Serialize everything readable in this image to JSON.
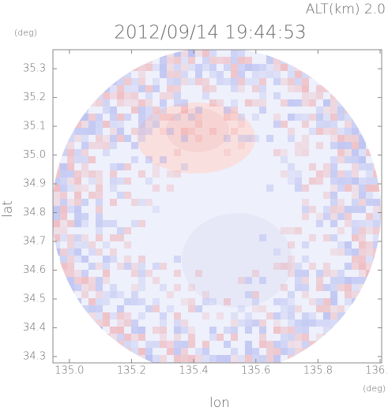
{
  "chart_data": {
    "type": "heatmap",
    "title": "2012/09/14 19:44:53",
    "subtitle": "ALT(km) 2.0",
    "y_unit": "(deg)",
    "x_unit": "(deg)",
    "ylabel": "lat",
    "xlabel": "lon",
    "xlim": [
      134.947,
      136.005
    ],
    "ylim": [
      34.278,
      35.366
    ],
    "xticks": [
      {
        "value": 135,
        "label": "135.0"
      },
      135.2,
      135.4,
      135.6,
      135.8,
      {
        "value": 136,
        "label": "136.0"
      }
    ],
    "yticks": [
      34.3,
      34.4,
      34.5,
      34.6,
      34.7,
      34.8,
      34.9,
      {
        "value": 35,
        "label": "35.0"
      },
      35.1,
      35.2,
      35.3
    ]
  }
}
